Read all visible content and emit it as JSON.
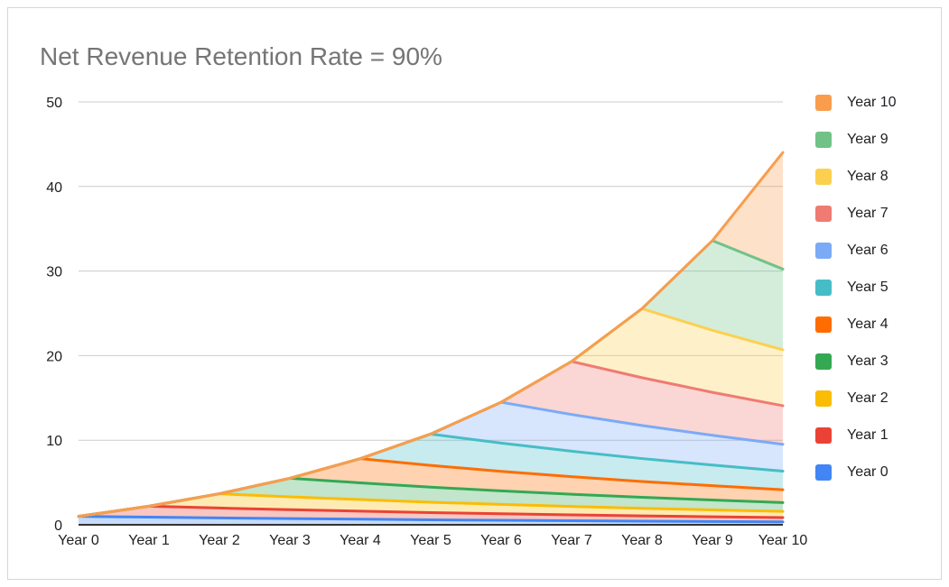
{
  "chart_data": {
    "type": "area",
    "stacked": true,
    "title": "Net Revenue Retention Rate = 90%",
    "title_color": "#757575",
    "xlabel": "",
    "ylabel": "",
    "x_categories": [
      "Year 0",
      "Year 1",
      "Year 2",
      "Year 3",
      "Year 4",
      "Year 5",
      "Year 6",
      "Year 7",
      "Year 8",
      "Year 9",
      "Year 10"
    ],
    "yticks": [
      0,
      10,
      20,
      30,
      40,
      50
    ],
    "ylim": [
      0,
      50
    ],
    "grid": true,
    "gridline_color": "#cccccc",
    "axis_line_color": "#333333",
    "fill_opacity": 0.3,
    "line_width": 3,
    "legend_position": "right",
    "legend_order": "top is last series (Year 10) down to first (Year 0)",
    "series": [
      {
        "name": "Year 0",
        "color": "#4285F4",
        "values": [
          1.0,
          0.9,
          0.81,
          0.73,
          0.66,
          0.59,
          0.53,
          0.48,
          0.43,
          0.39,
          0.35
        ]
      },
      {
        "name": "Year 1",
        "color": "#EA4335",
        "values": [
          0,
          1.3,
          1.17,
          1.05,
          0.95,
          0.85,
          0.77,
          0.69,
          0.62,
          0.56,
          0.5
        ]
      },
      {
        "name": "Year 2",
        "color": "#FBBC04",
        "values": [
          0,
          0,
          1.69,
          1.52,
          1.37,
          1.23,
          1.11,
          1.0,
          0.9,
          0.81,
          0.73
        ]
      },
      {
        "name": "Year 3",
        "color": "#34A853",
        "values": [
          0,
          0,
          0,
          2.2,
          1.98,
          1.78,
          1.6,
          1.44,
          1.3,
          1.17,
          1.05
        ]
      },
      {
        "name": "Year 4",
        "color": "#FF6D01",
        "values": [
          0,
          0,
          0,
          0,
          2.86,
          2.57,
          2.31,
          2.08,
          1.87,
          1.69,
          1.52
        ]
      },
      {
        "name": "Year 5",
        "color": "#46BDC6",
        "values": [
          0,
          0,
          0,
          0,
          0,
          3.71,
          3.34,
          3.01,
          2.71,
          2.44,
          2.19
        ]
      },
      {
        "name": "Year 6",
        "color": "#7BAAF7",
        "values": [
          0,
          0,
          0,
          0,
          0,
          0,
          4.83,
          4.34,
          3.91,
          3.52,
          3.17
        ]
      },
      {
        "name": "Year 7",
        "color": "#F07B72",
        "values": [
          0,
          0,
          0,
          0,
          0,
          0,
          0,
          6.27,
          5.65,
          5.08,
          4.57
        ]
      },
      {
        "name": "Year 8",
        "color": "#FCD04F",
        "values": [
          0,
          0,
          0,
          0,
          0,
          0,
          0,
          0,
          8.16,
          7.34,
          6.61
        ]
      },
      {
        "name": "Year 9",
        "color": "#71C287",
        "values": [
          0,
          0,
          0,
          0,
          0,
          0,
          0,
          0,
          0,
          10.6,
          9.54
        ]
      },
      {
        "name": "Year 10",
        "color": "#F99D4D",
        "values": [
          0,
          0,
          0,
          0,
          0,
          0,
          0,
          0,
          0,
          0,
          13.79
        ]
      }
    ],
    "stacked_totals": [
      1.0,
      2.2,
      3.67,
      5.5,
      7.82,
      10.73,
      14.49,
      19.31,
      25.54,
      33.6,
      44.02
    ]
  }
}
